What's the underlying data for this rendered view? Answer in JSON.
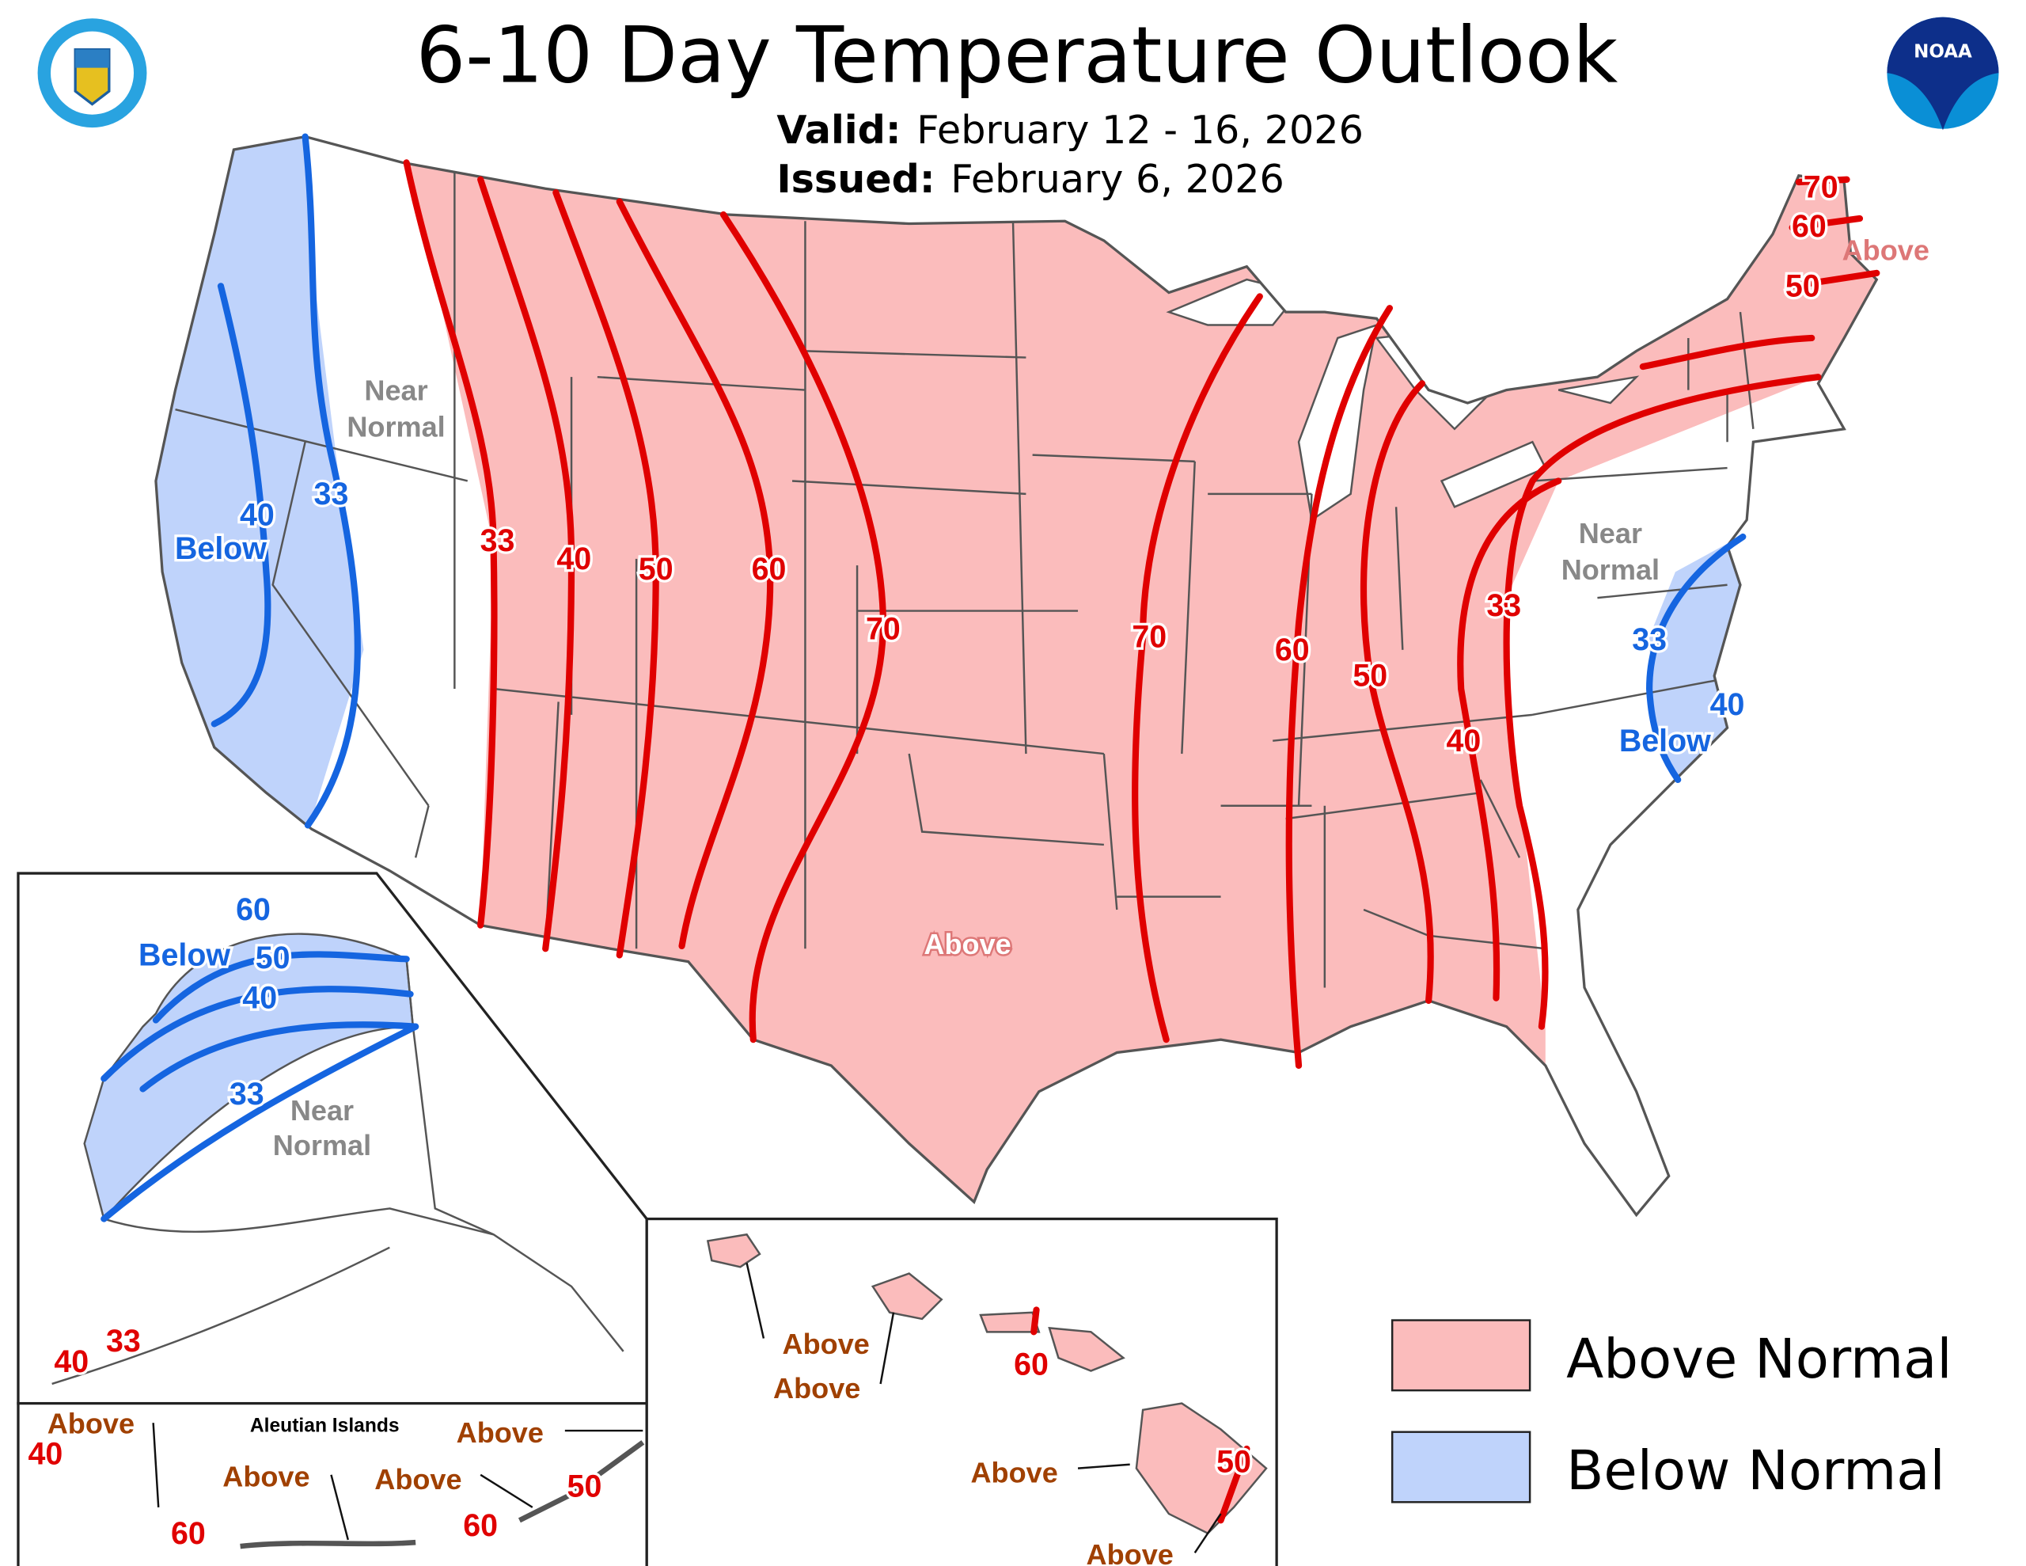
{
  "header": {
    "title": "6-10 Day Temperature Outlook",
    "valid_label": "Valid:",
    "valid_value": "February 12 - 16, 2026",
    "issued_label": "Issued:",
    "issued_value": "February 6, 2026"
  },
  "logos": {
    "left": "Department of Commerce seal - United States of America",
    "right": "NOAA"
  },
  "colors": {
    "above": "#fbbcbc",
    "below": "#bfd3fb",
    "above_line": "#e00000",
    "below_line": "#1565e0"
  },
  "conus": {
    "region_labels": [
      "Near",
      "Normal",
      "Below",
      "Above",
      "Near",
      "Normal",
      "Below",
      "Above"
    ],
    "red_contours": [
      "33",
      "40",
      "50",
      "60",
      "70",
      "70",
      "60",
      "50",
      "40",
      "33",
      "70",
      "60",
      "50"
    ],
    "blue_contours": [
      "40",
      "33",
      "33",
      "40"
    ]
  },
  "alaska": {
    "labels": [
      "Below",
      "Near",
      "Normal"
    ],
    "blue_contours": [
      "60",
      "50",
      "40",
      "33"
    ],
    "red_contours": [
      "40",
      "33"
    ]
  },
  "aleutians": {
    "title": "Aleutian Islands",
    "labels": [
      "Above",
      "Above",
      "Above",
      "Above"
    ],
    "red_contours": [
      "40",
      "60",
      "60",
      "50"
    ]
  },
  "hawaii": {
    "labels": [
      "Above",
      "Above",
      "Above",
      "Above"
    ],
    "red_contours": [
      "60",
      "50"
    ]
  },
  "legend": [
    {
      "label": "Above Normal",
      "color": "#fbbcbc"
    },
    {
      "label": "Below Normal",
      "color": "#bfd3fb"
    }
  ]
}
